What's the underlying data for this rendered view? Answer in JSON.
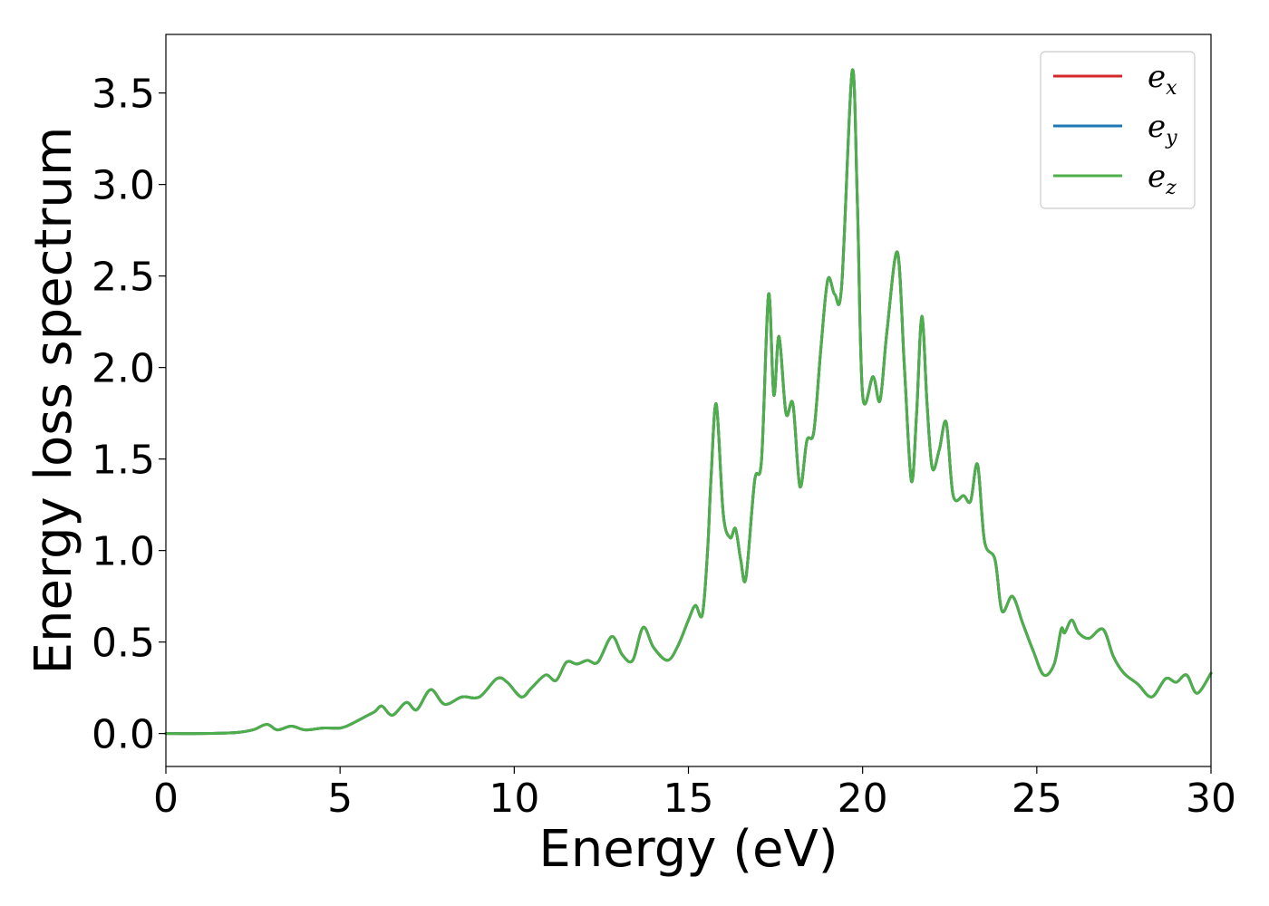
{
  "chart_data": {
    "type": "line",
    "title": "",
    "xlabel": "Energy (eV)",
    "ylabel": "Energy loss spectrum",
    "xlim": [
      0,
      30
    ],
    "ylim": [
      -0.18,
      3.82
    ],
    "xticks": [
      "0",
      "5",
      "10",
      "15",
      "20",
      "25",
      "30"
    ],
    "yticks": [
      "0.0",
      "0.5",
      "1.0",
      "1.5",
      "2.0",
      "2.5",
      "3.0",
      "3.5"
    ],
    "grid": false,
    "legend_position": "top-right",
    "legend": [
      {
        "base": "e",
        "sub": "x",
        "color": "#d62728"
      },
      {
        "base": "e",
        "sub": "y",
        "color": "#1f77b4"
      },
      {
        "base": "e",
        "sub": "z",
        "color": "#4daf4a"
      }
    ],
    "x": [
      0,
      1,
      2,
      2.5,
      2.9,
      3.2,
      3.6,
      4.0,
      4.5,
      5.0,
      5.3,
      5.8,
      6.0,
      6.2,
      6.5,
      6.9,
      7.2,
      7.6,
      8.0,
      8.5,
      9.0,
      9.5,
      9.8,
      10.2,
      10.5,
      10.9,
      11.2,
      11.5,
      11.8,
      12.1,
      12.4,
      12.8,
      13.1,
      13.4,
      13.7,
      14.0,
      14.4,
      14.7,
      15.0,
      15.2,
      15.4,
      15.55,
      15.65,
      15.8,
      16.0,
      16.2,
      16.35,
      16.5,
      16.65,
      16.9,
      17.1,
      17.3,
      17.45,
      17.6,
      17.8,
      18.0,
      18.2,
      18.4,
      18.6,
      18.8,
      19.0,
      19.2,
      19.4,
      19.7,
      19.85,
      20.0,
      20.3,
      20.5,
      20.7,
      21.0,
      21.2,
      21.4,
      21.55,
      21.7,
      21.85,
      22.0,
      22.2,
      22.4,
      22.6,
      22.9,
      23.1,
      23.3,
      23.5,
      23.8,
      24.0,
      24.3,
      24.6,
      24.9,
      25.2,
      25.5,
      25.7,
      25.8,
      26.0,
      26.2,
      26.5,
      26.9,
      27.2,
      27.5,
      27.9,
      28.3,
      28.7,
      29.0,
      29.3,
      29.6,
      30.0
    ],
    "series": [
      {
        "name": "e_x",
        "color": "#d62728",
        "values": [
          0.0,
          0.0,
          0.005,
          0.02,
          0.05,
          0.02,
          0.04,
          0.02,
          0.03,
          0.03,
          0.05,
          0.1,
          0.12,
          0.15,
          0.1,
          0.17,
          0.13,
          0.24,
          0.16,
          0.2,
          0.2,
          0.3,
          0.28,
          0.2,
          0.25,
          0.32,
          0.29,
          0.39,
          0.38,
          0.4,
          0.39,
          0.53,
          0.43,
          0.4,
          0.58,
          0.47,
          0.4,
          0.48,
          0.62,
          0.7,
          0.65,
          1.0,
          1.4,
          1.8,
          1.2,
          1.07,
          1.12,
          0.95,
          0.85,
          1.38,
          1.5,
          2.4,
          1.85,
          2.17,
          1.75,
          1.8,
          1.35,
          1.6,
          1.65,
          2.1,
          2.48,
          2.4,
          2.45,
          3.62,
          2.9,
          1.85,
          1.95,
          1.82,
          2.2,
          2.63,
          2.0,
          1.38,
          1.75,
          2.28,
          1.8,
          1.45,
          1.55,
          1.7,
          1.3,
          1.3,
          1.27,
          1.47,
          1.05,
          0.95,
          0.67,
          0.75,
          0.6,
          0.45,
          0.32,
          0.38,
          0.57,
          0.55,
          0.62,
          0.55,
          0.52,
          0.57,
          0.42,
          0.33,
          0.27,
          0.2,
          0.3,
          0.28,
          0.32,
          0.22,
          0.33
        ]
      },
      {
        "name": "e_y",
        "color": "#1f77b4",
        "values": [
          0.0,
          0.0,
          0.005,
          0.02,
          0.05,
          0.02,
          0.04,
          0.02,
          0.03,
          0.03,
          0.05,
          0.1,
          0.12,
          0.15,
          0.1,
          0.17,
          0.13,
          0.24,
          0.16,
          0.2,
          0.2,
          0.3,
          0.28,
          0.2,
          0.25,
          0.32,
          0.29,
          0.39,
          0.38,
          0.4,
          0.39,
          0.53,
          0.43,
          0.4,
          0.58,
          0.47,
          0.4,
          0.48,
          0.62,
          0.7,
          0.65,
          1.0,
          1.4,
          1.8,
          1.2,
          1.07,
          1.12,
          0.95,
          0.85,
          1.38,
          1.5,
          2.4,
          1.85,
          2.17,
          1.75,
          1.8,
          1.35,
          1.6,
          1.65,
          2.1,
          2.48,
          2.4,
          2.45,
          3.62,
          2.9,
          1.85,
          1.95,
          1.82,
          2.2,
          2.63,
          2.0,
          1.38,
          1.75,
          2.28,
          1.8,
          1.45,
          1.55,
          1.7,
          1.3,
          1.3,
          1.27,
          1.47,
          1.05,
          0.95,
          0.67,
          0.75,
          0.6,
          0.45,
          0.32,
          0.38,
          0.57,
          0.55,
          0.62,
          0.55,
          0.52,
          0.57,
          0.42,
          0.33,
          0.27,
          0.2,
          0.3,
          0.28,
          0.32,
          0.22,
          0.33
        ]
      },
      {
        "name": "e_z",
        "color": "#4daf4a",
        "values": [
          0.0,
          0.0,
          0.005,
          0.02,
          0.05,
          0.02,
          0.04,
          0.02,
          0.03,
          0.03,
          0.05,
          0.1,
          0.12,
          0.15,
          0.1,
          0.17,
          0.13,
          0.24,
          0.16,
          0.2,
          0.2,
          0.3,
          0.28,
          0.2,
          0.25,
          0.32,
          0.29,
          0.39,
          0.38,
          0.4,
          0.39,
          0.53,
          0.43,
          0.4,
          0.58,
          0.47,
          0.4,
          0.48,
          0.62,
          0.7,
          0.65,
          1.0,
          1.4,
          1.8,
          1.2,
          1.07,
          1.12,
          0.95,
          0.85,
          1.38,
          1.5,
          2.4,
          1.85,
          2.17,
          1.75,
          1.8,
          1.35,
          1.6,
          1.65,
          2.1,
          2.48,
          2.4,
          2.45,
          3.62,
          2.9,
          1.85,
          1.95,
          1.82,
          2.2,
          2.63,
          2.0,
          1.38,
          1.75,
          2.28,
          1.8,
          1.45,
          1.55,
          1.7,
          1.3,
          1.3,
          1.27,
          1.47,
          1.05,
          0.95,
          0.67,
          0.75,
          0.6,
          0.45,
          0.32,
          0.38,
          0.57,
          0.55,
          0.62,
          0.55,
          0.52,
          0.57,
          0.42,
          0.33,
          0.27,
          0.2,
          0.3,
          0.28,
          0.32,
          0.22,
          0.33
        ]
      }
    ]
  }
}
